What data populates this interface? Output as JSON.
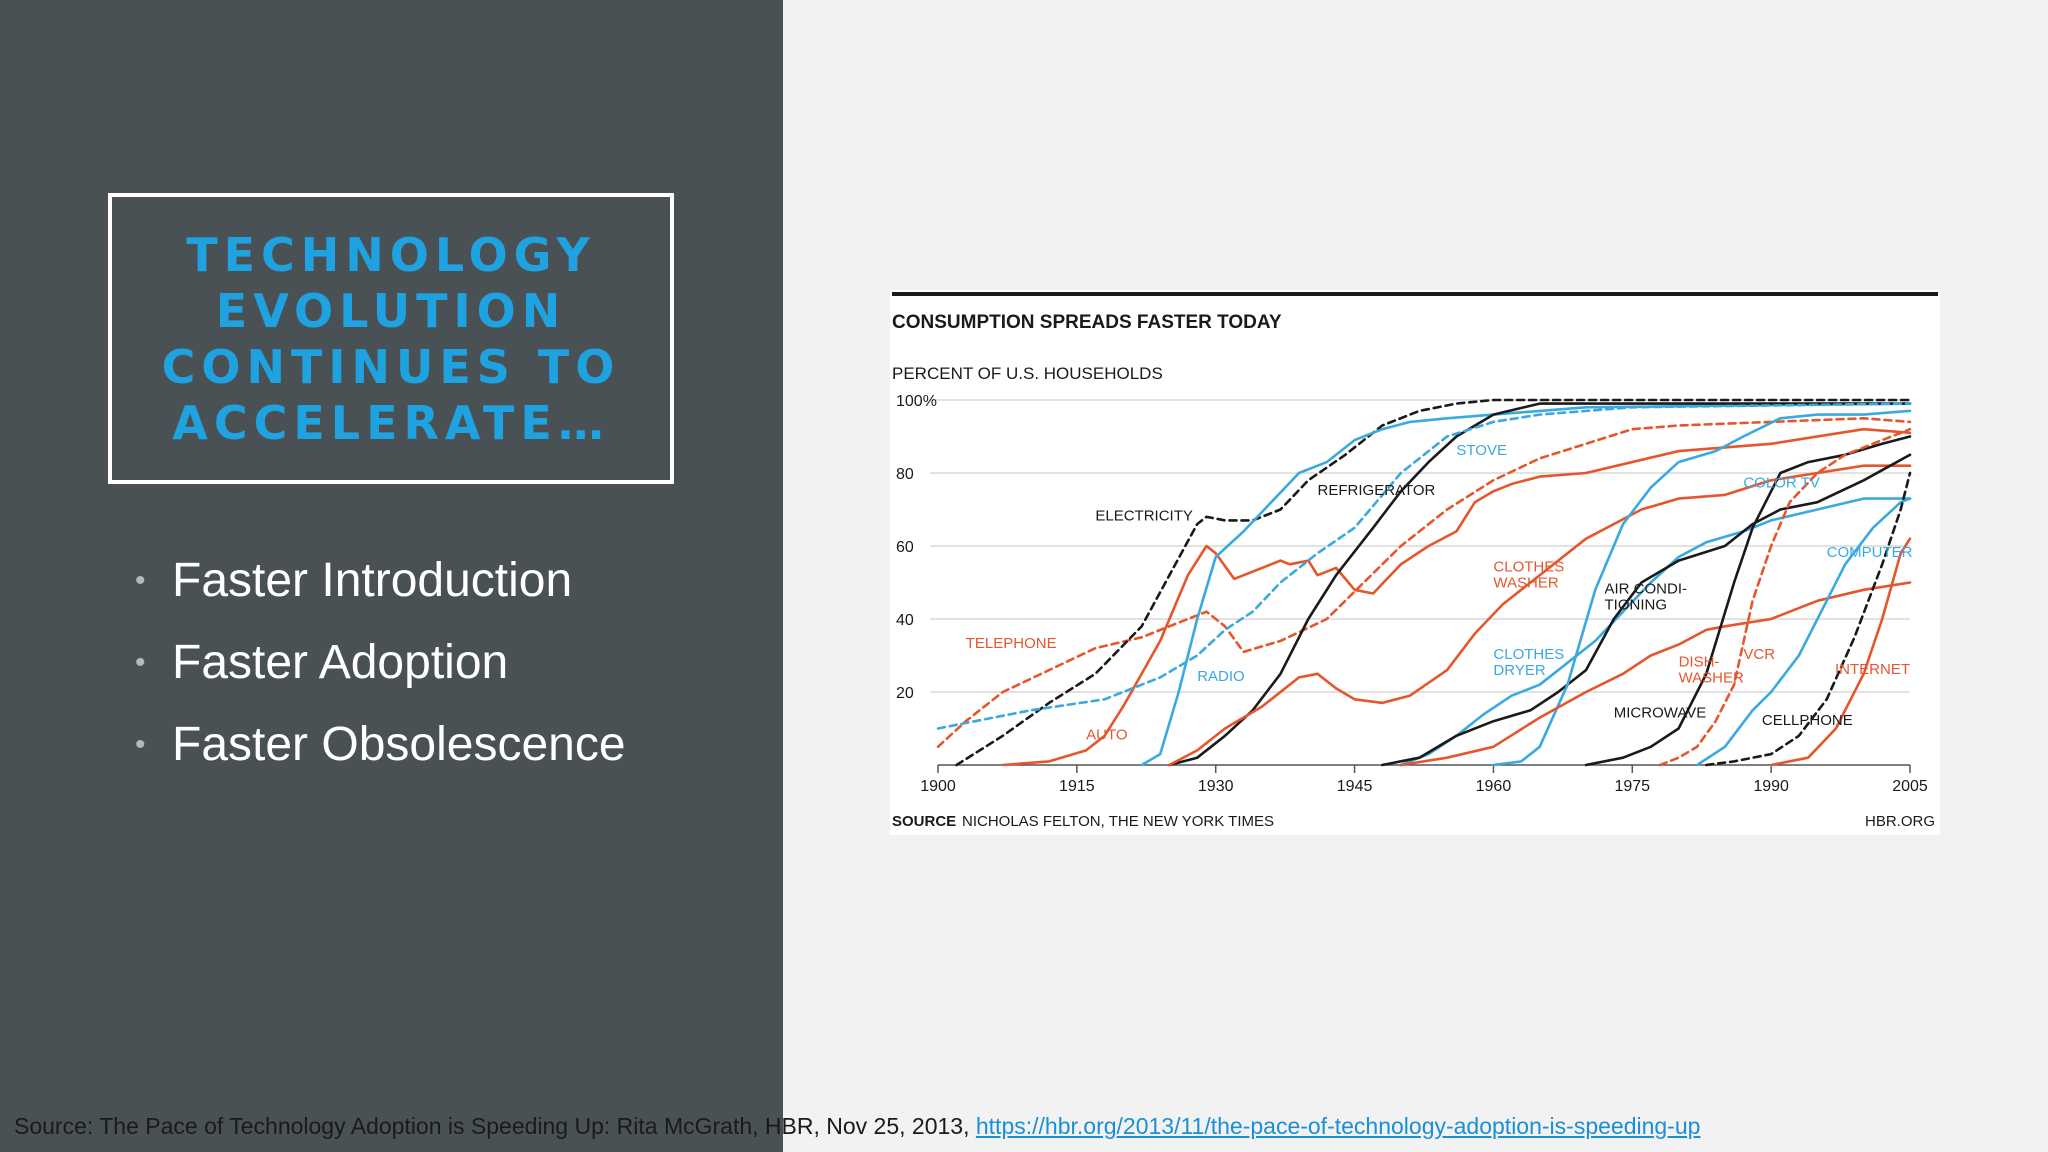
{
  "slide": {
    "title": "TECHNOLOGY EVOLUTION CONTINUES TO ACCELERATE…",
    "bullets": [
      "Faster Introduction",
      "Faster Adoption",
      "Faster Obsolescence"
    ],
    "source_prefix": "Source:  The Pace of Technology Adoption is Speeding Up: Rita McGrath, HBR, Nov 25, 2013,",
    "source_link": "https://hbr.org/2013/11/the-pace-of-technology-adoption-is-speeding-up",
    "colors": {
      "left_panel": "#4a5155",
      "title": "#1fa2e0",
      "link": "#1b8fd6"
    }
  },
  "chart_data": {
    "type": "line",
    "title": "CONSUMPTION SPREADS FASTER TODAY",
    "ylabel": "PERCENT OF U.S. HOUSEHOLDS",
    "xlim": [
      1900,
      2005
    ],
    "ylim": [
      0,
      100
    ],
    "x_ticks": [
      "1900",
      "1915",
      "1930",
      "1945",
      "1960",
      "1975",
      "1990",
      "2005"
    ],
    "y_ticks": [
      "100%",
      "80",
      "60",
      "40",
      "20"
    ],
    "grid": true,
    "source_label": "SOURCE",
    "source_text": "NICHOLAS FELTON, THE NEW YORK TIMES",
    "credit": "HBR.ORG",
    "colors": {
      "black": "#1a1a1a",
      "blue": "#3aa9df",
      "orange": "#e5562c",
      "grid": "#d9d9d9"
    },
    "series": [
      {
        "name": "TELEPHONE",
        "color": "orange",
        "dash": true,
        "label_at": [
          1903,
          32
        ],
        "points": [
          [
            1900,
            5
          ],
          [
            1903,
            12
          ],
          [
            1907,
            20
          ],
          [
            1912,
            26
          ],
          [
            1917,
            32
          ],
          [
            1922,
            35
          ],
          [
            1927,
            40
          ],
          [
            1929,
            42
          ],
          [
            1931,
            38
          ],
          [
            1933,
            31
          ],
          [
            1937,
            34
          ],
          [
            1942,
            40
          ],
          [
            1946,
            50
          ],
          [
            1950,
            60
          ],
          [
            1955,
            70
          ],
          [
            1960,
            78
          ],
          [
            1965,
            84
          ],
          [
            1970,
            88
          ],
          [
            1975,
            92
          ],
          [
            1980,
            93
          ],
          [
            1990,
            94
          ],
          [
            2000,
            95
          ],
          [
            2005,
            94
          ]
        ]
      },
      {
        "name": "ELECTRICITY",
        "color": "black",
        "dash": true,
        "label_at": [
          1917,
          67
        ],
        "points": [
          [
            1902,
            0
          ],
          [
            1907,
            8
          ],
          [
            1912,
            17
          ],
          [
            1917,
            25
          ],
          [
            1922,
            38
          ],
          [
            1925,
            52
          ],
          [
            1928,
            66
          ],
          [
            1929,
            68
          ],
          [
            1931,
            67
          ],
          [
            1934,
            67
          ],
          [
            1937,
            70
          ],
          [
            1940,
            78
          ],
          [
            1944,
            85
          ],
          [
            1948,
            93
          ],
          [
            1952,
            97
          ],
          [
            1956,
            99
          ],
          [
            1960,
            100
          ],
          [
            2005,
            100
          ]
        ]
      },
      {
        "name": "AUTO",
        "color": "orange",
        "dash": false,
        "label_at": [
          1916,
          7
        ],
        "points": [
          [
            1907,
            0
          ],
          [
            1912,
            1
          ],
          [
            1916,
            4
          ],
          [
            1918,
            8
          ],
          [
            1920,
            16
          ],
          [
            1924,
            34
          ],
          [
            1927,
            52
          ],
          [
            1929,
            60
          ],
          [
            1930,
            58
          ],
          [
            1932,
            51
          ],
          [
            1935,
            54
          ],
          [
            1937,
            56
          ],
          [
            1938,
            55
          ],
          [
            1940,
            56
          ],
          [
            1941,
            52
          ],
          [
            1943,
            54
          ],
          [
            1945,
            48
          ],
          [
            1947,
            47
          ],
          [
            1950,
            55
          ],
          [
            1953,
            60
          ],
          [
            1956,
            64
          ],
          [
            1958,
            72
          ],
          [
            1960,
            75
          ],
          [
            1962,
            77
          ],
          [
            1965,
            79
          ],
          [
            1970,
            80
          ],
          [
            1980,
            86
          ],
          [
            1990,
            88
          ],
          [
            2000,
            92
          ],
          [
            2005,
            91
          ]
        ]
      },
      {
        "name": "RADIO",
        "color": "blue",
        "dash": false,
        "label_at": [
          1928,
          23
        ],
        "points": [
          [
            1922,
            0
          ],
          [
            1924,
            3
          ],
          [
            1926,
            20
          ],
          [
            1928,
            40
          ],
          [
            1930,
            57
          ],
          [
            1933,
            64
          ],
          [
            1936,
            72
          ],
          [
            1939,
            80
          ],
          [
            1942,
            83
          ],
          [
            1945,
            89
          ],
          [
            1948,
            92
          ],
          [
            1951,
            94
          ],
          [
            1955,
            95
          ],
          [
            1960,
            96
          ],
          [
            1970,
            98
          ],
          [
            2005,
            99
          ]
        ]
      },
      {
        "name": "REFRIGERATOR",
        "color": "black",
        "dash": false,
        "label_at": [
          1941,
          74
        ],
        "points": [
          [
            1925,
            0
          ],
          [
            1928,
            2
          ],
          [
            1931,
            8
          ],
          [
            1934,
            15
          ],
          [
            1937,
            25
          ],
          [
            1940,
            40
          ],
          [
            1943,
            52
          ],
          [
            1947,
            65
          ],
          [
            1950,
            75
          ],
          [
            1953,
            83
          ],
          [
            1956,
            90
          ],
          [
            1960,
            96
          ],
          [
            1965,
            99
          ],
          [
            2005,
            99
          ]
        ]
      },
      {
        "name": "STOVE",
        "color": "blue",
        "dash": true,
        "label_at": [
          1956,
          85
        ],
        "points": [
          [
            1900,
            10
          ],
          [
            1910,
            15
          ],
          [
            1918,
            18
          ],
          [
            1924,
            24
          ],
          [
            1928,
            30
          ],
          [
            1931,
            37
          ],
          [
            1934,
            42
          ],
          [
            1937,
            50
          ],
          [
            1941,
            58
          ],
          [
            1945,
            65
          ],
          [
            1950,
            80
          ],
          [
            1955,
            90
          ],
          [
            1960,
            94
          ],
          [
            1965,
            96
          ],
          [
            1975,
            98
          ],
          [
            2005,
            99
          ]
        ]
      },
      {
        "name": "CLOTHES WASHER",
        "color": "orange",
        "dash": false,
        "label_at": [
          1960,
          53
        ],
        "points": [
          [
            1925,
            0
          ],
          [
            1928,
            4
          ],
          [
            1931,
            10
          ],
          [
            1935,
            16
          ],
          [
            1939,
            24
          ],
          [
            1941,
            25
          ],
          [
            1943,
            21
          ],
          [
            1945,
            18
          ],
          [
            1948,
            17
          ],
          [
            1951,
            19
          ],
          [
            1955,
            26
          ],
          [
            1958,
            36
          ],
          [
            1961,
            44
          ],
          [
            1964,
            50
          ],
          [
            1967,
            56
          ],
          [
            1970,
            62
          ],
          [
            1973,
            66
          ],
          [
            1976,
            70
          ],
          [
            1980,
            73
          ],
          [
            1985,
            74
          ],
          [
            1990,
            78
          ],
          [
            1995,
            80
          ],
          [
            2000,
            82
          ],
          [
            2005,
            82
          ]
        ]
      },
      {
        "name": "CLOTHES DRYER",
        "color": "blue",
        "dash": false,
        "label_at": [
          1960,
          29
        ],
        "points": [
          [
            1950,
            0
          ],
          [
            1953,
            3
          ],
          [
            1956,
            8
          ],
          [
            1959,
            14
          ],
          [
            1962,
            19
          ],
          [
            1965,
            22
          ],
          [
            1968,
            28
          ],
          [
            1971,
            34
          ],
          [
            1974,
            42
          ],
          [
            1977,
            50
          ],
          [
            1980,
            57
          ],
          [
            1983,
            61
          ],
          [
            1987,
            64
          ],
          [
            1990,
            67
          ],
          [
            1995,
            70
          ],
          [
            2000,
            73
          ],
          [
            2005,
            73
          ]
        ]
      },
      {
        "name": "AIR CONDI- TIONING",
        "color": "black",
        "dash": false,
        "label_at": [
          1972,
          47
        ],
        "points": [
          [
            1948,
            0
          ],
          [
            1952,
            2
          ],
          [
            1956,
            8
          ],
          [
            1960,
            12
          ],
          [
            1964,
            15
          ],
          [
            1967,
            20
          ],
          [
            1970,
            26
          ],
          [
            1973,
            40
          ],
          [
            1976,
            50
          ],
          [
            1980,
            56
          ],
          [
            1985,
            60
          ],
          [
            1988,
            66
          ],
          [
            1991,
            70
          ],
          [
            1995,
            72
          ],
          [
            2000,
            78
          ],
          [
            2005,
            85
          ]
        ]
      },
      {
        "name": "COLOR TV",
        "color": "blue",
        "dash": false,
        "label_at": [
          1987,
          76
        ],
        "points": [
          [
            1960,
            0
          ],
          [
            1963,
            1
          ],
          [
            1965,
            5
          ],
          [
            1968,
            22
          ],
          [
            1971,
            48
          ],
          [
            1974,
            66
          ],
          [
            1977,
            76
          ],
          [
            1980,
            83
          ],
          [
            1984,
            86
          ],
          [
            1987,
            90
          ],
          [
            1991,
            95
          ],
          [
            1995,
            96
          ],
          [
            2000,
            96
          ],
          [
            2005,
            97
          ]
        ]
      },
      {
        "name": "DISH- WASHER",
        "color": "orange",
        "dash": false,
        "label_at": [
          1980,
          27
        ],
        "points": [
          [
            1950,
            0
          ],
          [
            1955,
            2
          ],
          [
            1960,
            5
          ],
          [
            1965,
            13
          ],
          [
            1970,
            20
          ],
          [
            1974,
            25
          ],
          [
            1977,
            30
          ],
          [
            1980,
            33
          ],
          [
            1983,
            37
          ],
          [
            1985,
            38
          ],
          [
            1990,
            40
          ],
          [
            1995,
            45
          ],
          [
            2000,
            48
          ],
          [
            2005,
            50
          ]
        ]
      },
      {
        "name": "MICROWAVE",
        "color": "black",
        "dash": false,
        "label_at": [
          1973,
          13
        ],
        "points": [
          [
            1970,
            0
          ],
          [
            1974,
            2
          ],
          [
            1977,
            5
          ],
          [
            1980,
            10
          ],
          [
            1983,
            25
          ],
          [
            1986,
            50
          ],
          [
            1988,
            65
          ],
          [
            1991,
            80
          ],
          [
            1994,
            83
          ],
          [
            1998,
            85
          ],
          [
            2002,
            88
          ],
          [
            2005,
            90
          ]
        ]
      },
      {
        "name": "VCR",
        "color": "orange",
        "dash": true,
        "label_at": [
          1987,
          29
        ],
        "points": [
          [
            1978,
            0
          ],
          [
            1980,
            2
          ],
          [
            1982,
            5
          ],
          [
            1984,
            12
          ],
          [
            1986,
            22
          ],
          [
            1988,
            45
          ],
          [
            1990,
            60
          ],
          [
            1992,
            72
          ],
          [
            1995,
            80
          ],
          [
            1998,
            85
          ],
          [
            2002,
            89
          ],
          [
            2005,
            92
          ]
        ]
      },
      {
        "name": "COMPUTER",
        "color": "blue",
        "dash": false,
        "label_at": [
          1996,
          57
        ],
        "points": [
          [
            1982,
            0
          ],
          [
            1985,
            5
          ],
          [
            1988,
            15
          ],
          [
            1990,
            20
          ],
          [
            1993,
            30
          ],
          [
            1996,
            45
          ],
          [
            1998,
            55
          ],
          [
            2001,
            65
          ],
          [
            2004,
            72
          ],
          [
            2005,
            73
          ]
        ]
      },
      {
        "name": "CELLPHONE",
        "color": "black",
        "dash": true,
        "label_at": [
          1989,
          11
        ],
        "points": [
          [
            1983,
            0
          ],
          [
            1986,
            1
          ],
          [
            1990,
            3
          ],
          [
            1993,
            8
          ],
          [
            1996,
            18
          ],
          [
            1999,
            35
          ],
          [
            2002,
            55
          ],
          [
            2004,
            70
          ],
          [
            2005,
            80
          ]
        ]
      },
      {
        "name": "INTERNET",
        "color": "orange",
        "dash": false,
        "label_at": [
          2005,
          25
        ],
        "points": [
          [
            1990,
            0
          ],
          [
            1994,
            2
          ],
          [
            1997,
            10
          ],
          [
            2000,
            25
          ],
          [
            2002,
            40
          ],
          [
            2004,
            58
          ],
          [
            2005,
            62
          ]
        ]
      }
    ]
  }
}
